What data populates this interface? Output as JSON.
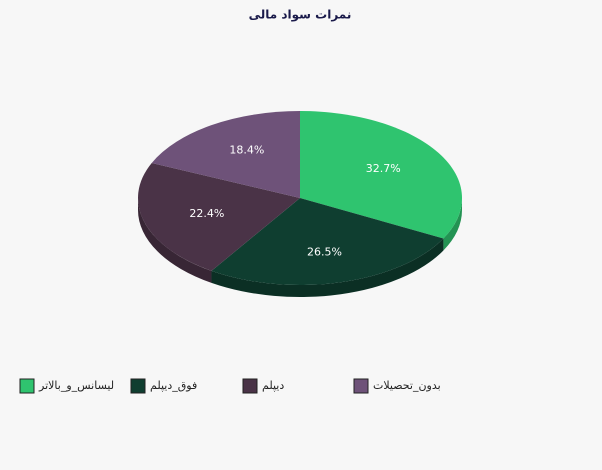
{
  "chart_data": {
    "type": "pie",
    "title": "نمرات سواد مالی",
    "categories": [
      "لیسانس_و_بالاتر",
      "فوق_دیپلم",
      "دیپلم",
      "بدون_تحصیلات"
    ],
    "values": [
      32.7,
      26.5,
      22.4,
      18.4
    ],
    "value_labels": [
      "32.7%",
      "26.5%",
      "22.4%",
      "18.4%"
    ],
    "colors": [
      "#2fc46f",
      "#0f3e30",
      "#4a3347",
      "#6e5279"
    ]
  }
}
